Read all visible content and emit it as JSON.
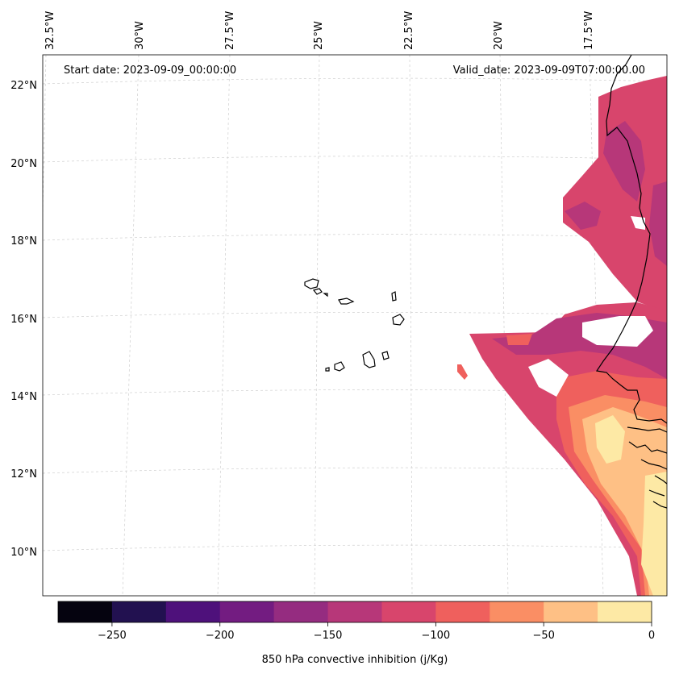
{
  "map": {
    "start_date": "Start date: 2023-09-09_00:00:00",
    "valid_date": "Valid_date: 2023-09-09T07:00:00.00",
    "lon_labels": [
      "32.5°W",
      "30°W",
      "27.5°W",
      "25°W",
      "22.5°W",
      "20°W",
      "17.5°W"
    ],
    "lat_labels": [
      "22°N",
      "20°N",
      "18°N",
      "16°N",
      "14°N",
      "12°N",
      "10°N"
    ]
  },
  "colorbar": {
    "label": "850 hPa convective inhibition (j/Kg)",
    "levels": [
      -275,
      -250,
      -225,
      -200,
      -175,
      -150,
      -125,
      -100,
      -75,
      -50,
      -25,
      0
    ],
    "tick_labels": [
      "−250",
      "−200",
      "−150",
      "−100",
      "−50",
      "0"
    ],
    "tick_values": [
      -250,
      -200,
      -150,
      -100,
      -50,
      0
    ],
    "colors": [
      "#05030f",
      "#221150",
      "#4e117b",
      "#731c81",
      "#952c80",
      "#b73779",
      "#d8456c",
      "#ef605d",
      "#fa8e64",
      "#fec085",
      "#fde9a5"
    ]
  },
  "chart_data": {
    "type": "heatmap",
    "title": "850 hPa convective inhibition (j/Kg)",
    "variable": "850 hPa convective inhibition",
    "units": "j/Kg",
    "extent_lon": [
      -33,
      -16
    ],
    "extent_lat": [
      9,
      22.5
    ],
    "color_range": [
      -275,
      0
    ]
  }
}
